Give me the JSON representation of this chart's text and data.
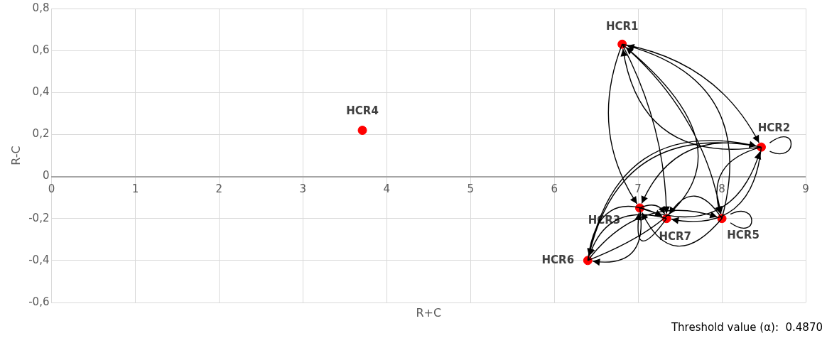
{
  "chart_data": {
    "type": "scatter",
    "xlabel": "R+C",
    "ylabel": "R-C",
    "x": [
      6.81,
      8.47,
      7.02,
      3.71,
      8.0,
      6.4,
      7.34
    ],
    "series": [
      {
        "color": "#ff0000",
        "values": [
          0.63,
          0.14,
          -0.15,
          0.22,
          -0.2,
          -0.4,
          -0.2
        ]
      }
    ],
    "xlim": [
      0,
      9
    ],
    "xticks": [
      0,
      1,
      2,
      3,
      4,
      5,
      6,
      7,
      8,
      9
    ],
    "ylim": [
      -0.6,
      0.8
    ],
    "yticks": [
      {
        "value": -0.6,
        "label": "-0,6"
      },
      {
        "value": -0.4,
        "label": "-0,4"
      },
      {
        "value": -0.2,
        "label": "-0,2"
      },
      {
        "value": 0,
        "label": "0"
      },
      {
        "value": 0.2,
        "label": "0,2"
      },
      {
        "value": 0.4,
        "label": "0,4"
      },
      {
        "value": 0.6,
        "label": "0,6"
      },
      {
        "value": 0.8,
        "label": "0,8"
      }
    ],
    "grid": true,
    "legend": false,
    "marker": "circle",
    "annotations": [
      {
        "text": "HCR1",
        "x": 6.81,
        "y": 0.63
      },
      {
        "text": "HCR2",
        "x": 8.47,
        "y": 0.14
      },
      {
        "text": "HCR3",
        "x": 7.02,
        "y": -0.15
      },
      {
        "text": "HCR4",
        "x": 3.71,
        "y": 0.22
      },
      {
        "text": "HCR5",
        "x": 8.0,
        "y": -0.2
      },
      {
        "text": "HCR6",
        "x": 6.4,
        "y": -0.4
      },
      {
        "text": "HCR7",
        "x": 7.34,
        "y": -0.2
      },
      "Threshold value (α):  0.4870"
    ]
  }
}
